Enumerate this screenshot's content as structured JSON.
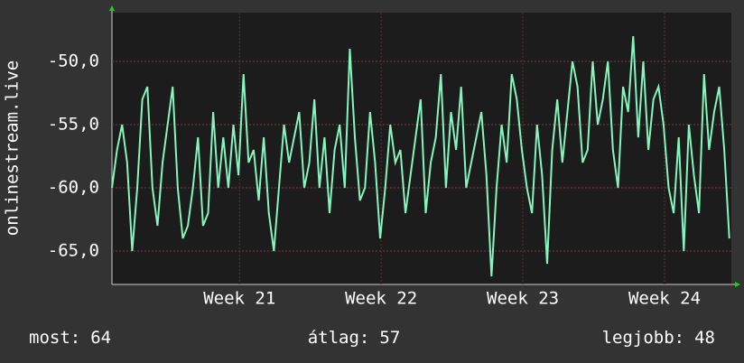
{
  "chart_data": {
    "type": "line",
    "y_label": "onlinestream.live",
    "ylim": [
      -67.64,
      -46.14
    ],
    "yticks": [
      {
        "value": -50,
        "label": "-50,0"
      },
      {
        "value": -55,
        "label": "-55,0"
      },
      {
        "value": -60,
        "label": "-60,0"
      },
      {
        "value": -65,
        "label": "-65,0"
      }
    ],
    "xlim": [
      0,
      30.6
    ],
    "xticks": [
      {
        "value": 6.3,
        "label": "Week 21"
      },
      {
        "value": 13.3,
        "label": "Week 22"
      },
      {
        "value": 20.3,
        "label": "Week 23"
      },
      {
        "value": 27.3,
        "label": "Week 24"
      }
    ],
    "grid": true,
    "x": [
      0,
      0.25,
      0.5,
      0.75,
      1,
      1.25,
      1.5,
      1.75,
      2,
      2.25,
      2.5,
      2.75,
      3,
      3.25,
      3.5,
      3.75,
      4,
      4.25,
      4.5,
      4.75,
      5,
      5.25,
      5.5,
      5.75,
      6,
      6.25,
      6.5,
      6.75,
      7,
      7.25,
      7.5,
      7.75,
      8,
      8.25,
      8.5,
      8.75,
      9,
      9.25,
      9.5,
      9.75,
      10,
      10.25,
      10.5,
      10.75,
      11,
      11.25,
      11.5,
      11.75,
      12,
      12.25,
      12.5,
      12.75,
      13,
      13.25,
      13.5,
      13.75,
      14,
      14.25,
      14.5,
      14.75,
      15,
      15.25,
      15.5,
      15.75,
      16,
      16.25,
      16.5,
      16.75,
      17,
      17.25,
      17.5,
      17.75,
      18,
      18.25,
      18.5,
      18.75,
      19,
      19.25,
      19.5,
      19.75,
      20,
      20.25,
      20.5,
      20.75,
      21,
      21.25,
      21.5,
      21.75,
      22,
      22.25,
      22.5,
      22.75,
      23,
      23.25,
      23.5,
      23.75,
      24,
      24.25,
      24.5,
      24.75,
      25,
      25.25,
      25.5,
      25.75,
      26,
      26.25,
      26.5,
      26.75,
      27,
      27.25,
      27.5,
      27.75,
      28,
      28.25,
      28.5,
      28.75,
      29,
      29.25,
      29.5,
      29.75,
      30,
      30.25,
      30.5
    ],
    "series": [
      {
        "color": "#86f5bd",
        "values": [
          -60,
          -57,
          -55,
          -58,
          -65,
          -60,
          -53,
          -52,
          -60,
          -63,
          -58,
          -55,
          -52,
          -60,
          -64,
          -63,
          -60,
          -56,
          -63,
          -62,
          -54,
          -60,
          -56,
          -60,
          -55,
          -59,
          -51,
          -58,
          -57,
          -61,
          -56,
          -62,
          -65,
          -60,
          -55,
          -58,
          -56,
          -54,
          -60,
          -58,
          -53,
          -60,
          -56,
          -62,
          -57,
          -55,
          -60,
          -49,
          -56,
          -61,
          -60,
          -54,
          -58,
          -64,
          -60,
          -55,
          -58,
          -57,
          -62,
          -59,
          -56,
          -53,
          -62,
          -58,
          -56,
          -51,
          -60,
          -54,
          -57,
          -52,
          -60,
          -58,
          -56,
          -54,
          -59,
          -67,
          -60,
          -55,
          -58,
          -51,
          -53,
          -57,
          -60,
          -62,
          -55,
          -59,
          -66,
          -57,
          -53,
          -58,
          -54,
          -50,
          -52,
          -58,
          -57,
          -50,
          -55,
          -53,
          -50,
          -57,
          -60,
          -52,
          -54,
          -48,
          -56,
          -50,
          -57,
          -53,
          -52,
          -55,
          -60,
          -62,
          -56,
          -65,
          -55,
          -59,
          -62,
          -51,
          -57,
          -54,
          -52,
          -57,
          -64
        ]
      }
    ],
    "stats": [
      {
        "label": "most:",
        "value": 64
      },
      {
        "label": "átlag:",
        "value": 57
      },
      {
        "label": "legjobb:",
        "value": 48
      }
    ]
  }
}
